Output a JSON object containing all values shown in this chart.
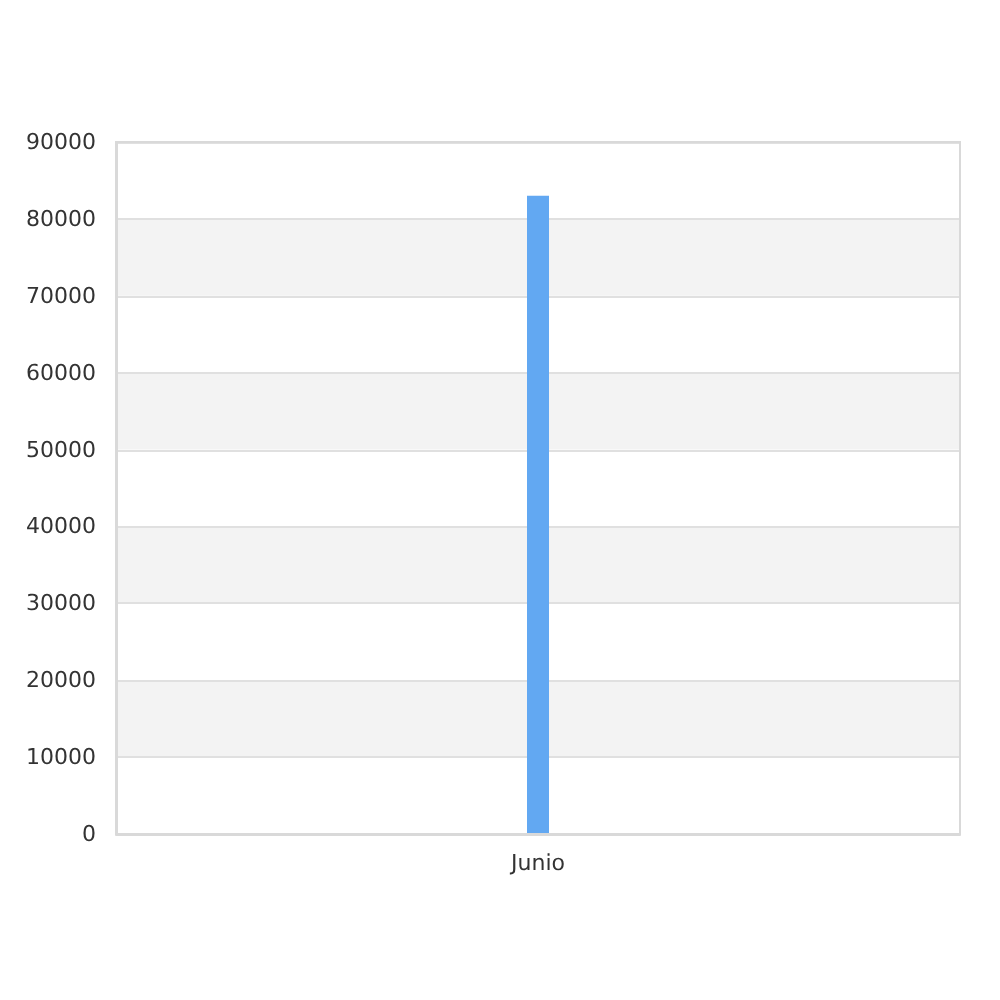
{
  "chart_data": {
    "type": "bar",
    "categories": [
      "Junio"
    ],
    "values": [
      83000
    ],
    "color": "#62a8f2",
    "ylim": [
      0,
      90000
    ],
    "yticks": [
      0,
      10000,
      20000,
      30000,
      40000,
      50000,
      60000,
      70000,
      80000,
      90000
    ],
    "grid": "y"
  }
}
